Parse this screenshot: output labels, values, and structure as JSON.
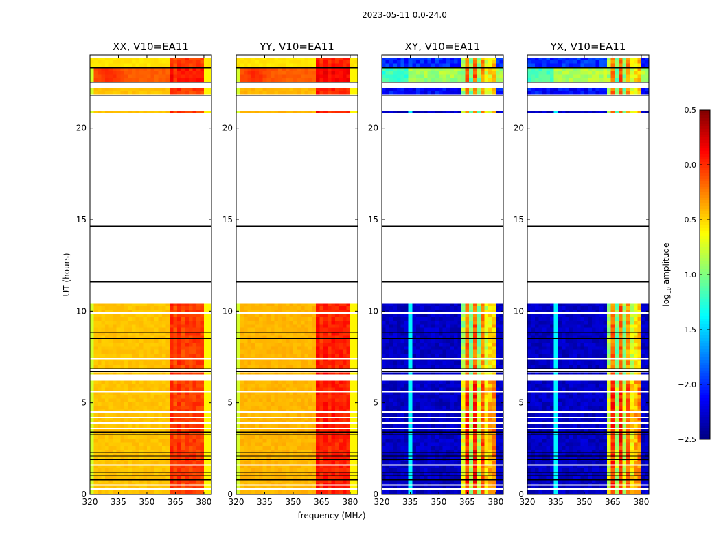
{
  "chart_data": {
    "type": "heatmap",
    "suptitle": "2023-05-11 0.0-24.0",
    "xlabel": "frequency (MHz)",
    "ylabel": "UT (hours)",
    "xlim": [
      320,
      384
    ],
    "ylim": [
      0,
      24
    ],
    "xticks": [
      320,
      335,
      350,
      365,
      380
    ],
    "yticks": [
      0,
      5,
      10,
      15,
      20
    ],
    "panels": [
      {
        "title": "XX, V10=EA11",
        "kind": "auto",
        "offset": 0.0
      },
      {
        "title": "YY, V10=EA11",
        "kind": "auto",
        "offset": 0.08
      },
      {
        "title": "XY, V10=EA11",
        "kind": "cross",
        "offset": 0.0
      },
      {
        "title": "YX, V10=EA11",
        "kind": "cross",
        "offset": 0.05
      }
    ],
    "data_segments_ut": [
      [
        22.55,
        23.85
      ],
      [
        21.85,
        22.2
      ],
      [
        20.85,
        20.95
      ],
      [
        6.9,
        10.4
      ],
      [
        6.55,
        6.65
      ],
      [
        0.05,
        6.2
      ]
    ],
    "flagged_lines_ut": [
      23.3,
      22.5,
      21.8,
      14.65,
      11.6,
      8.85,
      8.5,
      6.85,
      6.7,
      3.4,
      3.25,
      2.3,
      2.1,
      1.9,
      1.2,
      1.0,
      0.8
    ],
    "gap_lines_ut": [
      9.9,
      7.4,
      5.6,
      4.5,
      4.2,
      3.9,
      3.6,
      1.6,
      0.5,
      0.3
    ],
    "rfi_band_mhz": [
      362,
      380
    ],
    "levels_log10": {
      "auto_base": -0.45,
      "auto_rfi": -0.05,
      "auto_top_block": -0.15,
      "cross_base": -2.3,
      "cross_rfi": -0.6,
      "cross_top_block": -0.9
    },
    "colorbar": {
      "label": "log10 amplitude",
      "label_main": "log",
      "label_sub": "10",
      "label_rest": " amplitude",
      "range": [
        -2.5,
        0.5
      ],
      "ticks": [
        0.5,
        0.0,
        -0.5,
        -1.0,
        -1.5,
        -2.0,
        -2.5
      ],
      "tick_labels": [
        "0.5",
        "0.0",
        "−0.5",
        "−1.0",
        "−1.5",
        "−2.0",
        "−2.5"
      ],
      "colormap": "jet"
    }
  }
}
